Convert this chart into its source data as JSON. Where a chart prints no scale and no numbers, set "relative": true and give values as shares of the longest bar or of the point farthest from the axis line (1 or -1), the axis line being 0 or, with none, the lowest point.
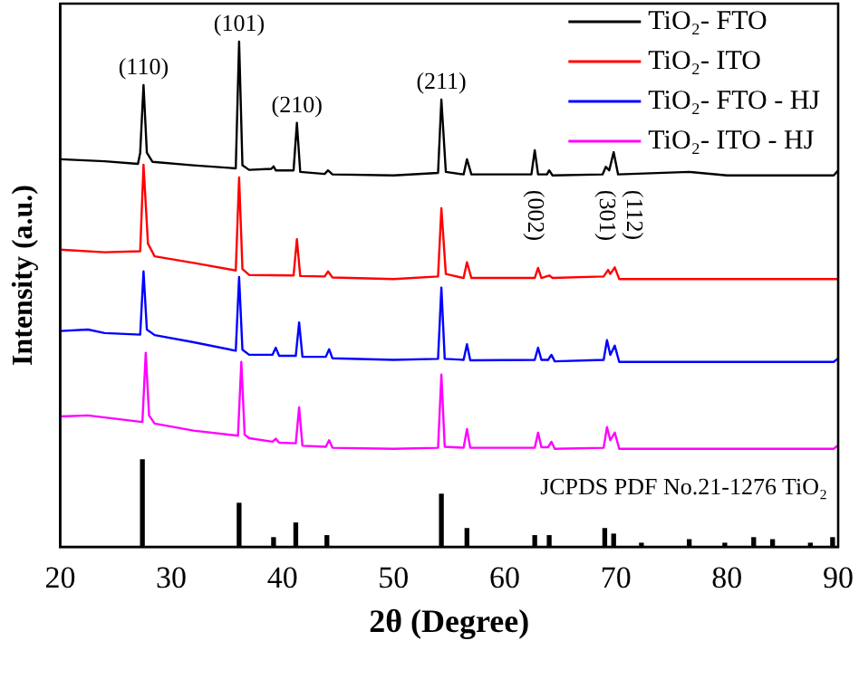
{
  "chart_data": {
    "type": "line",
    "relative": true,
    "xlabel": "2θ (Degree)",
    "ylabel": "Intensity (a.u.)",
    "xlim": [
      20,
      90
    ],
    "xticks": [
      20,
      30,
      40,
      50,
      60,
      70,
      80,
      90
    ],
    "legend": "top right",
    "grid": false,
    "marker": "none",
    "line_style": "solid",
    "series": [
      {
        "name": "TiO₂- FTO",
        "color": "#000000",
        "x": [
          20,
          24,
          27,
          27.2,
          27.5,
          27.8,
          28.3,
          32,
          35.8,
          36.1,
          36.4,
          37,
          39,
          39.2,
          39.4,
          41.0,
          41.3,
          41.6,
          43.8,
          44.1,
          44.5,
          50,
          54.0,
          54.3,
          54.7,
          56.3,
          56.6,
          57,
          62.4,
          62.7,
          63,
          63.8,
          64,
          64.3,
          68.8,
          69.1,
          69.4,
          69.8,
          70.2,
          76.6,
          80,
          89.6,
          90
        ],
        "values": [
          0.767,
          0.763,
          0.758,
          0.78,
          0.914,
          0.78,
          0.762,
          0.755,
          0.749,
          1.0,
          0.755,
          0.746,
          0.748,
          0.753,
          0.745,
          0.745,
          0.839,
          0.742,
          0.738,
          0.745,
          0.737,
          0.735,
          0.74,
          0.885,
          0.742,
          0.737,
          0.767,
          0.737,
          0.737,
          0.785,
          0.737,
          0.737,
          0.745,
          0.735,
          0.737,
          0.752,
          0.745,
          0.781,
          0.737,
          0.742,
          0.735,
          0.735,
          0.745
        ]
      },
      {
        "name": "TiO₂- ITO",
        "color": "#ff0000",
        "x": [
          20,
          24,
          27.2,
          27.5,
          27.9,
          28.5,
          32,
          35.8,
          36.1,
          36.4,
          37,
          41.0,
          41.3,
          41.6,
          43.8,
          44.1,
          44.5,
          50,
          54.0,
          54.3,
          54.7,
          56.3,
          56.6,
          57,
          62.7,
          63,
          63.3,
          64,
          64.3,
          68.9,
          69.3,
          69.5,
          69.9,
          70.3,
          90
        ],
        "values": [
          0.588,
          0.583,
          0.585,
          0.756,
          0.6,
          0.575,
          0.562,
          0.547,
          0.731,
          0.55,
          0.538,
          0.537,
          0.609,
          0.536,
          0.535,
          0.545,
          0.533,
          0.53,
          0.535,
          0.67,
          0.54,
          0.532,
          0.563,
          0.532,
          0.532,
          0.552,
          0.532,
          0.537,
          0.532,
          0.535,
          0.548,
          0.54,
          0.553,
          0.53,
          0.53
        ]
      },
      {
        "name": "TiO₂- FTO - HJ",
        "color": "#0000ff",
        "x": [
          20,
          22.5,
          24,
          27.2,
          27.5,
          27.8,
          28.5,
          32,
          35.8,
          36.1,
          36.4,
          37,
          39.1,
          39.4,
          39.7,
          41.2,
          41.5,
          41.8,
          43.9,
          44.2,
          44.5,
          50,
          54.0,
          54.3,
          54.6,
          56.3,
          56.6,
          56.9,
          62.7,
          63,
          63.3,
          63.9,
          64.2,
          64.5,
          68.9,
          69.2,
          69.5,
          69.9,
          70.3,
          89.6,
          90
        ],
        "values": [
          0.427,
          0.43,
          0.423,
          0.42,
          0.545,
          0.43,
          0.419,
          0.405,
          0.388,
          0.534,
          0.39,
          0.38,
          0.38,
          0.394,
          0.378,
          0.378,
          0.444,
          0.376,
          0.376,
          0.391,
          0.373,
          0.37,
          0.372,
          0.513,
          0.372,
          0.37,
          0.401,
          0.369,
          0.37,
          0.394,
          0.37,
          0.37,
          0.38,
          0.367,
          0.37,
          0.409,
          0.38,
          0.398,
          0.366,
          0.366,
          0.373
        ]
      },
      {
        "name": "TiO₂- ITO - HJ",
        "color": "#ff00ff",
        "x": [
          20,
          22.5,
          27.4,
          27.7,
          28,
          28.5,
          32,
          36.0,
          36.3,
          36.6,
          37,
          39.1,
          39.4,
          39.7,
          41.2,
          41.5,
          41.8,
          43.9,
          44.2,
          44.5,
          50,
          54.0,
          54.3,
          54.6,
          56.3,
          56.6,
          56.9,
          62.7,
          63,
          63.3,
          63.9,
          64.2,
          64.5,
          68.9,
          69.2,
          69.5,
          69.9,
          70.3,
          89.6,
          90
        ],
        "values": [
          0.258,
          0.26,
          0.247,
          0.384,
          0.26,
          0.244,
          0.23,
          0.22,
          0.366,
          0.222,
          0.215,
          0.208,
          0.214,
          0.206,
          0.205,
          0.276,
          0.2,
          0.198,
          0.211,
          0.196,
          0.194,
          0.196,
          0.341,
          0.198,
          0.196,
          0.233,
          0.196,
          0.196,
          0.226,
          0.197,
          0.197,
          0.208,
          0.194,
          0.196,
          0.237,
          0.211,
          0.226,
          0.194,
          0.194,
          0.201
        ]
      },
      {
        "type": "bar",
        "color": "#000000",
        "x": [
          27.4,
          36.1,
          39.2,
          41.2,
          44.0,
          54.3,
          56.6,
          62.7,
          64.0,
          69.0,
          69.8,
          72.3,
          76.6,
          79.8,
          82.4,
          84.1,
          87.5,
          89.5
        ],
        "values": [
          0.172,
          0.086,
          0.018,
          0.047,
          0.022,
          0.104,
          0.036,
          0.022,
          0.022,
          0.036,
          0.025,
          0.007,
          0.014,
          0.007,
          0.018,
          0.014,
          0.007,
          0.018
        ]
      }
    ],
    "annotations": [
      {
        "text": "(110)",
        "x": 27.5,
        "y": 0.914
      },
      {
        "text": "(101)",
        "x": 36.1,
        "y": 1.0
      },
      {
        "text": "(210)",
        "x": 41.3,
        "y": 0.839
      },
      {
        "text": "(211)",
        "x": 54.3,
        "y": 0.885
      },
      {
        "text": "(002)",
        "x": 62.7,
        "y": 0.785
      },
      {
        "text": "(301)",
        "x": 69.1,
        "y": 0.752
      },
      {
        "text": "(112)",
        "x": 69.8,
        "y": 0.781
      },
      "JCPDS PDF No.21-1276 TiO₂"
    ]
  }
}
